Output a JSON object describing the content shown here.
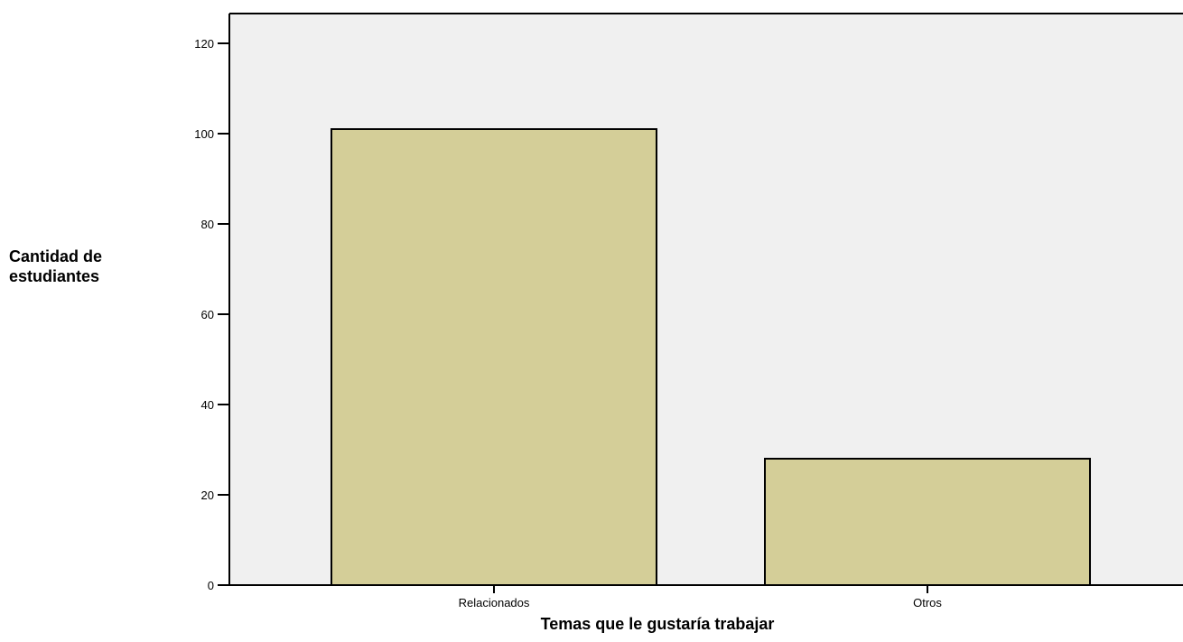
{
  "chart_data": {
    "type": "bar",
    "categories": [
      "Relacionados",
      "Otros"
    ],
    "values": [
      101,
      28
    ],
    "title": "",
    "xlabel": "Temas que le gustaría trabajar",
    "ylabel_lines": [
      "Cantidad de",
      "estudiantes"
    ],
    "yticks": [
      0,
      20,
      40,
      60,
      80,
      100,
      120
    ],
    "ylim": [
      0,
      126
    ],
    "grid": false,
    "colors": {
      "bar_fill": "#d4ce98",
      "bar_stroke": "#000000",
      "plot_background": "#f0f0f0",
      "axis": "#000000"
    }
  }
}
